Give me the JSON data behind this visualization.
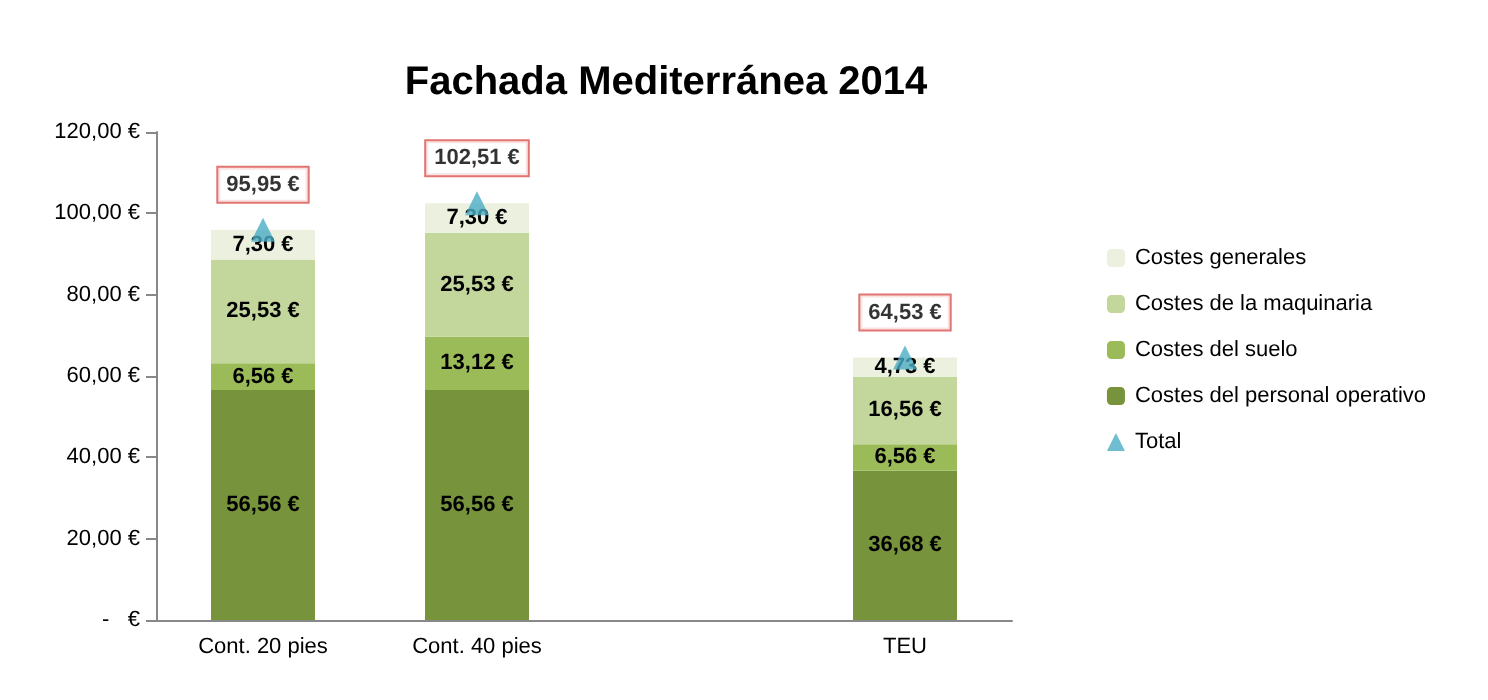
{
  "chart_data": {
    "type": "bar",
    "title": "Fachada Mediterránea 2014",
    "categories": [
      "Cont. 20 pies",
      "Cont. 40 pies",
      null,
      "TEU"
    ],
    "stacked": true,
    "grid": false,
    "legend": "right",
    "ylim": [
      0,
      120
    ],
    "yticks": [
      {
        "value": 0,
        "label": "-   €"
      },
      {
        "value": 20,
        "label": "20,00 €"
      },
      {
        "value": 40,
        "label": "40,00 €"
      },
      {
        "value": 60,
        "label": "60,00 €"
      },
      {
        "value": 80,
        "label": "80,00 €"
      },
      {
        "value": 100,
        "label": "100,00 €"
      },
      {
        "value": 120,
        "label": "120,00 €"
      }
    ],
    "series": [
      {
        "name": "Costes del personal operativo",
        "color": "#77933c",
        "values": [
          56.56,
          56.56,
          null,
          36.68
        ],
        "value_labels": [
          "56,56 €",
          "56,56 €",
          null,
          "36,68 €"
        ]
      },
      {
        "name": "Costes del suelo",
        "color": "#9bbb59",
        "values": [
          6.56,
          13.12,
          null,
          6.56
        ],
        "value_labels": [
          "6,56 €",
          "13,12 €",
          null,
          "6,56 €"
        ]
      },
      {
        "name": "Costes de la maquinaria",
        "color": "#c3d69b",
        "values": [
          25.53,
          25.53,
          null,
          16.56
        ],
        "value_labels": [
          "25,53 €",
          "25,53 €",
          null,
          "16,56 €"
        ]
      },
      {
        "name": "Costes generales",
        "color": "#ebf1de",
        "values": [
          7.3,
          7.3,
          null,
          4.73
        ],
        "value_labels": [
          "7,30 €",
          "7,30 €",
          null,
          "4,73 €"
        ]
      },
      {
        "name": "Total",
        "type": "scatter",
        "marker": "triangle",
        "color": "#4bacc6",
        "values": [
          95.95,
          102.51,
          null,
          64.53
        ],
        "value_labels": [
          "95,95 €",
          "102,51 €",
          null,
          "64,53 €"
        ]
      }
    ]
  }
}
